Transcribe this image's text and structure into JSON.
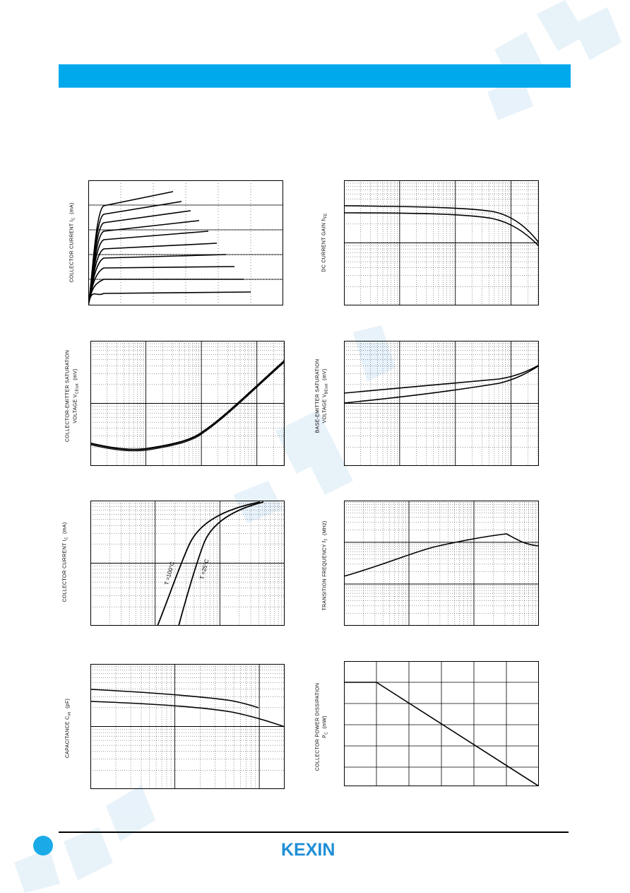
{
  "page": {
    "header_color": "#00a9ec",
    "logo_text": "KEXIN",
    "watermark_text": "KEXIN",
    "accent": "#1aaae8"
  },
  "charts": {
    "ic_vce": {
      "ylabel": "COLLECTOR CURRENT  I",
      "ylabel_sub": "C",
      "ylabel_unit": "(mA)"
    },
    "hfe": {
      "ylabel": "DC CURRENT GAIN  h",
      "ylabel_sub": "FE"
    },
    "vcesat": {
      "ylabel_line1": "COLLECTOR-EMITTER SATURATION",
      "ylabel_line2": "VOLTAGE   V",
      "ylabel_sub": "CEsat",
      "ylabel_unit": "(mV)"
    },
    "vbesat": {
      "ylabel_line1": "BASE-EMITTER SATURATION",
      "ylabel_line2": "VOLTAGE   V",
      "ylabel_sub": "BEsat",
      "ylabel_unit": "(mV)"
    },
    "ic_vbe": {
      "ylabel": "COLLECTOR CURRENT  I",
      "ylabel_sub": "C",
      "ylabel_unit": "(mA)",
      "curve1_label": "T =100°C",
      "curve2_label": "T =25°C"
    },
    "ft": {
      "ylabel": "TRANSITION FREQUENCY  f",
      "ylabel_sub": "T",
      "ylabel_unit": "(MHz)"
    },
    "cap": {
      "ylabel": "CAPACITANCE   C",
      "ylabel_sub": "ob",
      "ylabel_unit": "(pF)"
    },
    "pc": {
      "ylabel_line1": "COLLECTOR POWER DISSIPATION",
      "ylabel_line2": "P",
      "ylabel_sub": "C",
      "ylabel_unit": "(mW)"
    }
  }
}
